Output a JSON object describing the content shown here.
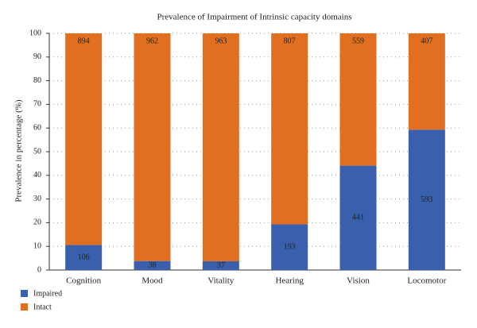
{
  "chart_data": {
    "type": "stacked_bar",
    "title": "Prevalence of Impairment of Intrinsic capacity domains",
    "y_label": "Prevalence in percentage (%)",
    "categories": [
      "Cognition",
      "Mood",
      "Vitality",
      "Hearing",
      "Vision",
      "Locomotor"
    ],
    "series": [
      {
        "name": "Impaired",
        "color": "#3a5fad",
        "values": [
          10.6,
          3.8,
          3.7,
          19.3,
          44.1,
          59.3
        ],
        "value_labels": [
          "106",
          "38",
          "37",
          "193",
          "441",
          "593"
        ]
      },
      {
        "name": "Intact",
        "color": "#e07020",
        "values": [
          89.4,
          96.2,
          96.3,
          80.7,
          55.9,
          40.7
        ],
        "value_labels": [
          "894",
          "962",
          "963",
          "807",
          "559",
          "407"
        ]
      }
    ],
    "ylim": [
      0,
      100
    ],
    "yticks": [
      0,
      10,
      20,
      30,
      40,
      50,
      60,
      70,
      80,
      90,
      100
    ],
    "grid": true,
    "legend": "bottom-left"
  }
}
